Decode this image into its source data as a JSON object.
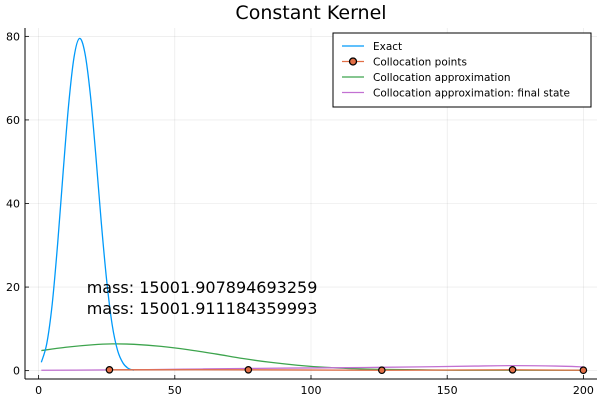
{
  "chart_data": {
    "type": "line",
    "title": "Constant Kernel",
    "xlabel": "",
    "ylabel": "",
    "xlim": [
      -5,
      205
    ],
    "ylim": [
      -2,
      82
    ],
    "x_ticks": [
      0,
      50,
      100,
      150,
      200
    ],
    "y_ticks": [
      0,
      20,
      40,
      60,
      80
    ],
    "grid": true,
    "legend_position": "top-right",
    "series": [
      {
        "name": "Exact",
        "kind": "line",
        "color": "#009AFA",
        "x": [
          1,
          3,
          5,
          7,
          9,
          11,
          13,
          15,
          17,
          19,
          21,
          23,
          25,
          27,
          29,
          31,
          33,
          35
        ],
        "y": [
          2,
          6.5,
          16,
          30.5,
          47.5,
          63.5,
          75,
          79.5,
          76,
          66,
          51.5,
          35.5,
          21.5,
          11,
          4.8,
          1.8,
          0.5,
          0.1
        ]
      },
      {
        "name": "Collocation points",
        "kind": "line+marker",
        "color": "#E26F46",
        "x": [
          26,
          77,
          126,
          174,
          200
        ],
        "y": [
          0.2,
          0.2,
          0.1,
          0.2,
          0.1
        ]
      },
      {
        "name": "Collocation approximation",
        "kind": "line",
        "color": "#3DA44D",
        "x": [
          1,
          10,
          20,
          27,
          35,
          45,
          55,
          65,
          75,
          85,
          95,
          105,
          115,
          125,
          140,
          155,
          170,
          185,
          200
        ],
        "y": [
          4.8,
          5.6,
          6.2,
          6.4,
          6.3,
          5.8,
          5.0,
          4.0,
          2.9,
          2.0,
          1.3,
          0.8,
          0.5,
          0.3,
          0.2,
          0.1,
          0.1,
          0.1,
          0.1
        ]
      },
      {
        "name": "Collocation approximation: final state",
        "kind": "line",
        "color": "#C271D2",
        "x": [
          1,
          20,
          40,
          60,
          80,
          100,
          120,
          140,
          160,
          175,
          190,
          200
        ],
        "y": [
          0.1,
          0.15,
          0.25,
          0.4,
          0.55,
          0.65,
          0.75,
          0.9,
          1.1,
          1.2,
          1.1,
          0.9
        ]
      }
    ],
    "annotations": [
      {
        "text": "mass: 15001.907894693259",
        "x": 60,
        "y": 20
      },
      {
        "text": "mass: 15001.911184359993",
        "x": 60,
        "y": 15
      }
    ]
  }
}
